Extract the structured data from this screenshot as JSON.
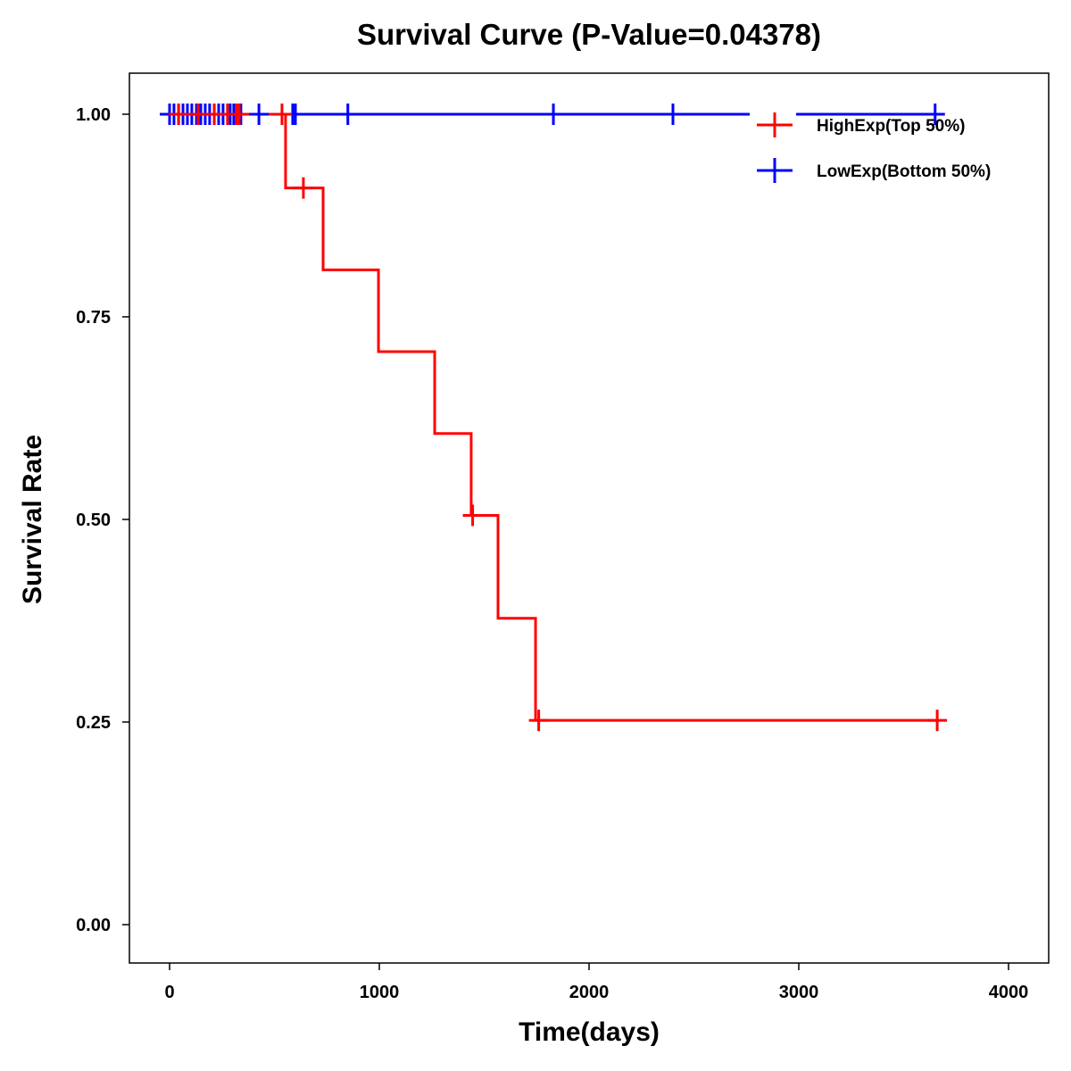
{
  "chart_data": {
    "type": "line",
    "title": "Survival Curve (P-Value=0.04378)",
    "xlabel": "Time(days)",
    "ylabel": "Survival Rate",
    "xlim": [
      -190,
      4200
    ],
    "ylim": [
      -0.05,
      1.05
    ],
    "xticks": [
      0,
      1000,
      2000,
      3000,
      4000
    ],
    "xtick_labels": [
      "0",
      "1000",
      "2000",
      "3000",
      "4000"
    ],
    "yticks": [
      0,
      0.25,
      0.5,
      0.75,
      1.0
    ],
    "ytick_labels": [
      "0.00",
      "0.25",
      "0.50",
      "0.75",
      "1.00"
    ],
    "grid": false,
    "legend_position": "top-right",
    "series": [
      {
        "name": "HighExp(Top 50%)",
        "color": "#ff0000",
        "steps": [
          [
            0,
            1.0
          ],
          [
            553,
            0.909
          ],
          [
            732,
            0.808
          ],
          [
            996,
            0.707
          ],
          [
            1264,
            0.606
          ],
          [
            1438,
            0.505
          ],
          [
            1566,
            0.378
          ],
          [
            1745,
            0.252
          ],
          [
            3660,
            0.252
          ]
        ],
        "censored": [
          [
            43,
            1.0
          ],
          [
            136,
            1.0
          ],
          [
            213,
            1.0
          ],
          [
            276,
            1.0
          ],
          [
            319,
            1.0
          ],
          [
            332,
            1.0
          ],
          [
            536,
            1.0
          ],
          [
            638,
            0.909
          ],
          [
            1445,
            0.505
          ],
          [
            1760,
            0.252
          ],
          [
            3660,
            0.252
          ]
        ]
      },
      {
        "name": "LowExp(Bottom 50%)",
        "color": "#0000ff",
        "steps": [
          [
            0,
            1.0
          ],
          [
            3680,
            1.0
          ]
        ],
        "censored": [
          [
            0,
            1.0
          ],
          [
            21,
            1.0
          ],
          [
            43,
            1.0
          ],
          [
            64,
            1.0
          ],
          [
            85,
            1.0
          ],
          [
            106,
            1.0
          ],
          [
            128,
            1.0
          ],
          [
            149,
            1.0
          ],
          [
            170,
            1.0
          ],
          [
            191,
            1.0
          ],
          [
            213,
            1.0
          ],
          [
            234,
            1.0
          ],
          [
            255,
            1.0
          ],
          [
            289,
            1.0
          ],
          [
            306,
            1.0
          ],
          [
            340,
            1.0
          ],
          [
            426,
            1.0
          ],
          [
            587,
            1.0
          ],
          [
            600,
            1.0
          ],
          [
            850,
            1.0
          ],
          [
            1830,
            1.0
          ],
          [
            2400,
            1.0
          ],
          [
            3650,
            1.0
          ]
        ]
      }
    ]
  }
}
